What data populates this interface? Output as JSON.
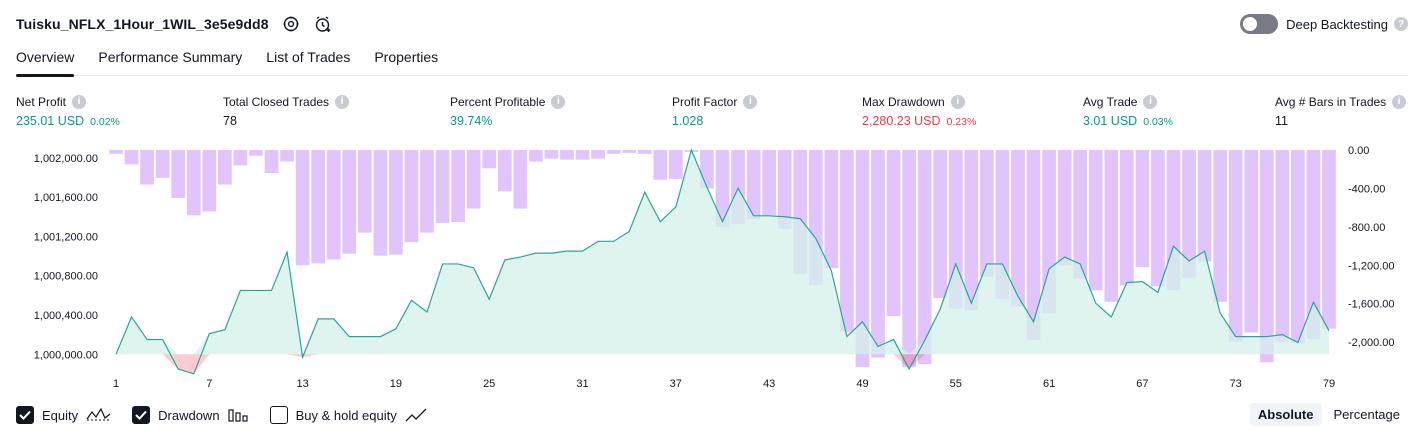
{
  "header": {
    "title": "Tuisku_NFLX_1Hour_1WIL_3e5e9dd8",
    "deep_backtesting_label": "Deep Backtesting"
  },
  "tabs": [
    {
      "label": "Overview",
      "active": true
    },
    {
      "label": "Performance Summary",
      "active": false
    },
    {
      "label": "List of Trades",
      "active": false
    },
    {
      "label": "Properties",
      "active": false
    }
  ],
  "stats": [
    {
      "label": "Net Profit",
      "value": "235.01 USD",
      "pct": "0.02%",
      "tone": "green"
    },
    {
      "label": "Total Closed Trades",
      "value": "78",
      "pct": "",
      "tone": "dark"
    },
    {
      "label": "Percent Profitable",
      "value": "39.74%",
      "pct": "",
      "tone": "green"
    },
    {
      "label": "Profit Factor",
      "value": "1.028",
      "pct": "",
      "tone": "green"
    },
    {
      "label": "Max Drawdown",
      "value": "2,280.23 USD",
      "pct": "0.23%",
      "tone": "red"
    },
    {
      "label": "Avg Trade",
      "value": "3.01 USD",
      "pct": "0.03%",
      "tone": "green"
    },
    {
      "label": "Avg # Bars in Trades",
      "value": "11",
      "pct": "",
      "tone": "dark"
    }
  ],
  "chart_data": {
    "type": "line",
    "x_tick_labels": [
      "1",
      "7",
      "13",
      "19",
      "25",
      "31",
      "37",
      "43",
      "49",
      "55",
      "61",
      "67",
      "73",
      "79"
    ],
    "left_axis_ticks": [
      "1,002,000.00",
      "1,001,600.00",
      "1,001,200.00",
      "1,000,800.00",
      "1,000,400.00",
      "1,000,000.00"
    ],
    "right_axis_ticks": [
      "0.00",
      "-400.00",
      "-800.00",
      "-1,200.00",
      "-1,600.00",
      "-2,000.00"
    ],
    "left_ylim": [
      999850,
      1002080
    ],
    "right_ylim": [
      -2280,
      0
    ],
    "series": [
      {
        "name": "Equity",
        "x": [
          1,
          2,
          3,
          4,
          5,
          6,
          7,
          8,
          9,
          10,
          11,
          12,
          13,
          14,
          15,
          16,
          17,
          18,
          19,
          20,
          21,
          22,
          23,
          24,
          25,
          26,
          27,
          28,
          29,
          30,
          31,
          32,
          33,
          34,
          35,
          36,
          37,
          38,
          39,
          40,
          41,
          42,
          43,
          44,
          45,
          46,
          47,
          48,
          49,
          50,
          51,
          52,
          53,
          54,
          55,
          56,
          57,
          58,
          59,
          60,
          61,
          62,
          63,
          64,
          65,
          66,
          67,
          68,
          69,
          70,
          71,
          72,
          73,
          74,
          75,
          76,
          77,
          78,
          79
        ],
        "values": [
          1000000,
          1000380,
          1000150,
          1000150,
          999850,
          999800,
          1000210,
          1000250,
          1000650,
          1000650,
          1000650,
          1001040,
          999970,
          1000360,
          1000360,
          1000180,
          1000180,
          1000180,
          1000260,
          1000550,
          1000430,
          1000920,
          1000920,
          1000880,
          1000560,
          1000960,
          1000990,
          1001030,
          1001030,
          1001050,
          1001050,
          1001150,
          1001150,
          1001250,
          1001650,
          1001350,
          1001500,
          1002080,
          1001700,
          1001350,
          1001690,
          1001410,
          1001410,
          1001400,
          1001380,
          1001180,
          1000850,
          1000180,
          1000330,
          1000080,
          1000150,
          999850,
          1000140,
          1000460,
          1000920,
          1000520,
          1000920,
          1000920,
          1000590,
          1000330,
          1000870,
          1000990,
          1000920,
          1000520,
          1000380,
          1000730,
          1000740,
          1000630,
          1001100,
          1000950,
          1001050,
          1000420,
          1000180,
          1000180,
          1000180,
          1000200,
          1000120,
          1000530,
          1000240
        ]
      },
      {
        "name": "Drawdown",
        "x": [
          1,
          2,
          3,
          4,
          5,
          6,
          7,
          8,
          9,
          10,
          11,
          12,
          13,
          14,
          15,
          16,
          17,
          18,
          19,
          20,
          21,
          22,
          23,
          24,
          25,
          26,
          27,
          28,
          29,
          30,
          31,
          32,
          33,
          34,
          35,
          36,
          37,
          38,
          39,
          40,
          41,
          42,
          43,
          44,
          45,
          46,
          47,
          48,
          49,
          50,
          51,
          52,
          53,
          54,
          55,
          56,
          57,
          58,
          59,
          60,
          61,
          62,
          63,
          64,
          65,
          66,
          67,
          68,
          69,
          70,
          71,
          72,
          73,
          74,
          75,
          76,
          77,
          78,
          79
        ],
        "values": [
          -40,
          -150,
          -360,
          -290,
          -500,
          -680,
          -640,
          -360,
          -160,
          -60,
          -240,
          -120,
          -1200,
          -1180,
          -1140,
          -1080,
          -860,
          -1100,
          -1090,
          -960,
          -860,
          -760,
          -750,
          -610,
          -190,
          -430,
          -610,
          -120,
          -90,
          -100,
          -100,
          -90,
          -40,
          -30,
          -40,
          -310,
          -300,
          -20,
          -400,
          -800,
          -770,
          -720,
          -680,
          -820,
          -1290,
          -1410,
          -1230,
          -1890,
          -2260,
          -2160,
          -1730,
          -2260,
          -2230,
          -1540,
          -1650,
          -1670,
          -1320,
          -1550,
          -1630,
          -1980,
          -1700,
          -1200,
          -1340,
          -1460,
          -1580,
          -1410,
          -1220,
          -1420,
          -1460,
          -1330,
          -1160,
          -1580,
          -2000,
          -1900,
          -2210,
          -2000,
          -2010,
          -1970,
          -1860
        ]
      },
      {
        "name": "Buy & hold equity",
        "visible": false
      }
    ],
    "colors": {
      "equity_line": "#26a69a",
      "equity_fill": "#d6f0ea",
      "equity_below": "#f23645",
      "drawdown_bar": "#e1c4fc",
      "drawdown_overlap": "#b5bde6"
    }
  },
  "footer": {
    "equity_label": "Equity",
    "drawdown_label": "Drawdown",
    "buyhold_label": "Buy & hold equity",
    "equity_checked": true,
    "drawdown_checked": true,
    "buyhold_checked": false,
    "absolute_label": "Absolute",
    "percentage_label": "Percentage",
    "active_mode": "Absolute"
  }
}
